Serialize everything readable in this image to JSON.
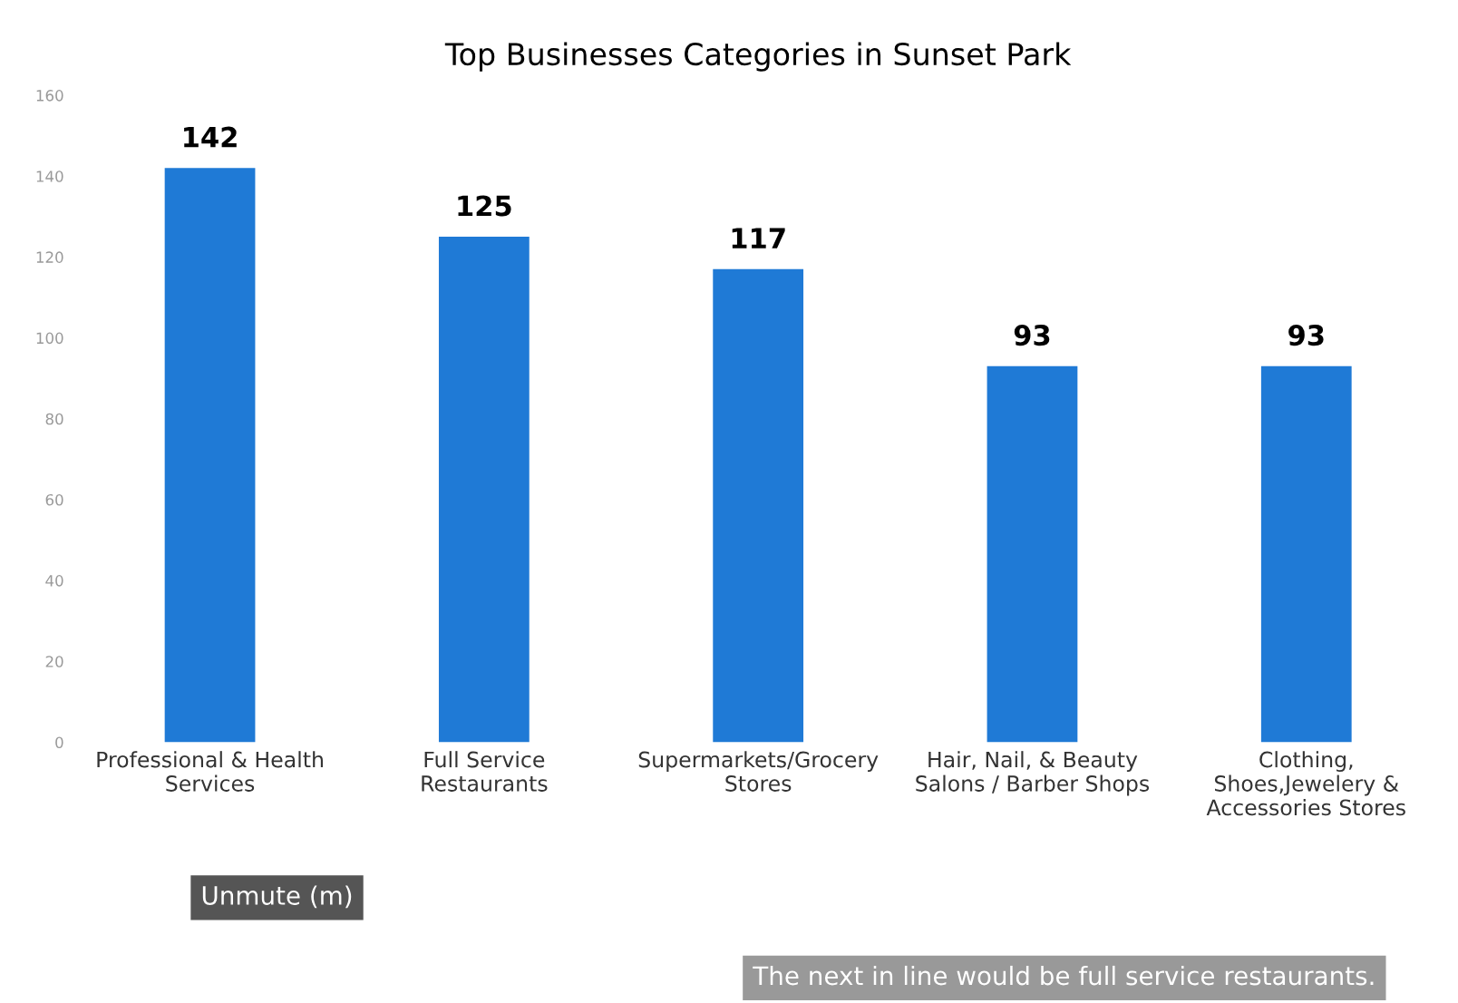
{
  "chart_data": {
    "type": "bar",
    "title": "Top Businesses Categories in Sunset Park",
    "categories": [
      "Professional & Health\nServices",
      "Full Service\nRestaurants",
      "Supermarkets/Grocery\nStores",
      "Hair, Nail, & Beauty\nSalons / Barber Shops",
      "Clothing,\nShoes,Jewelery &\nAccessories Stores"
    ],
    "values": [
      142,
      125,
      117,
      93,
      93
    ],
    "color": "#1f7ad6",
    "data_labels": true,
    "ylim": [
      0,
      160
    ],
    "yticks": [
      0,
      20,
      40,
      60,
      80,
      100,
      120,
      140,
      160
    ],
    "grid": false,
    "annotations": [
      "Unmute (m)",
      "The next in line would be full service restaurants."
    ]
  }
}
